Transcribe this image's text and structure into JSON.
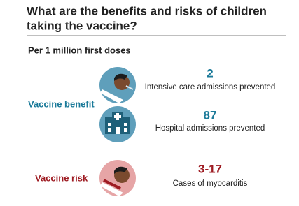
{
  "header": {
    "title_lines": [
      "What are the benefits and risks of children",
      "taking the vaccine?"
    ],
    "subtitle": "Per 1 million first doses"
  },
  "groups": [
    {
      "label": "Vaccine benefit",
      "items": [
        {
          "number": "2",
          "description": "Intensive care admissions prevented"
        },
        {
          "number": "87",
          "description": "Hospital admissions prevented"
        }
      ]
    },
    {
      "label": "Vaccine risk",
      "items": [
        {
          "number": "3-17",
          "description": "Cases of myocarditis"
        }
      ]
    }
  ]
}
